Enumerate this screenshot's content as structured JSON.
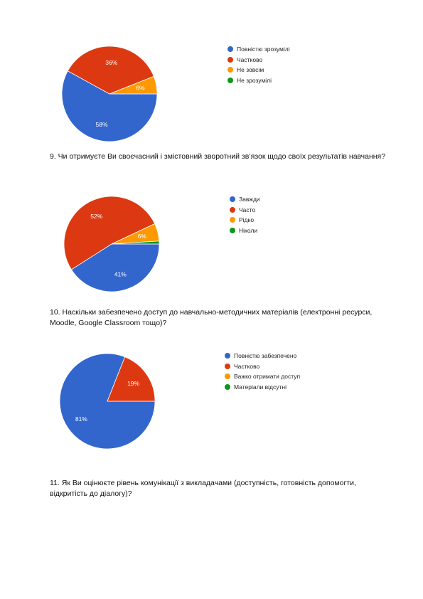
{
  "colors": {
    "blue": "#3366cc",
    "red": "#dc3912",
    "orange": "#ff9900",
    "green": "#109618"
  },
  "chart_data": [
    {
      "type": "pie",
      "categories": [
        "Повністю зрозумілі",
        "Частково",
        "Не зовсім",
        "Не зрозумілі"
      ],
      "values": [
        58,
        36,
        6,
        0
      ],
      "labels": [
        "58%",
        "36%",
        "6%",
        ""
      ]
    },
    {
      "type": "pie",
      "categories": [
        "Завжди",
        "Часто",
        "Рідко",
        "Ніколи"
      ],
      "values": [
        41,
        52,
        6,
        1
      ],
      "labels": [
        "41%",
        "52%",
        "6%",
        ""
      ]
    },
    {
      "type": "pie",
      "categories": [
        "Повністю забезпечено",
        "Частково",
        "Важко отримати доступ",
        "Матеріали відсутні"
      ],
      "values": [
        81,
        19,
        0,
        0
      ],
      "labels": [
        "81%",
        "19%",
        "",
        ""
      ]
    }
  ],
  "questions": {
    "q9": "9. Чи отримуєте Ви своєчасний і змістовний зворотний зв’язок щодо своїх результатів навчання?",
    "q10": "10. Наскільки забезпечено доступ до навчально-методичних матеріалів (електронні ресурси, Moodle, Google Classroom тощо)?",
    "q11": "11. Як Ви оцінюєте рівень комунікації з викладачами (доступність, готовність допомогти, відкритість до діалогу)?"
  }
}
